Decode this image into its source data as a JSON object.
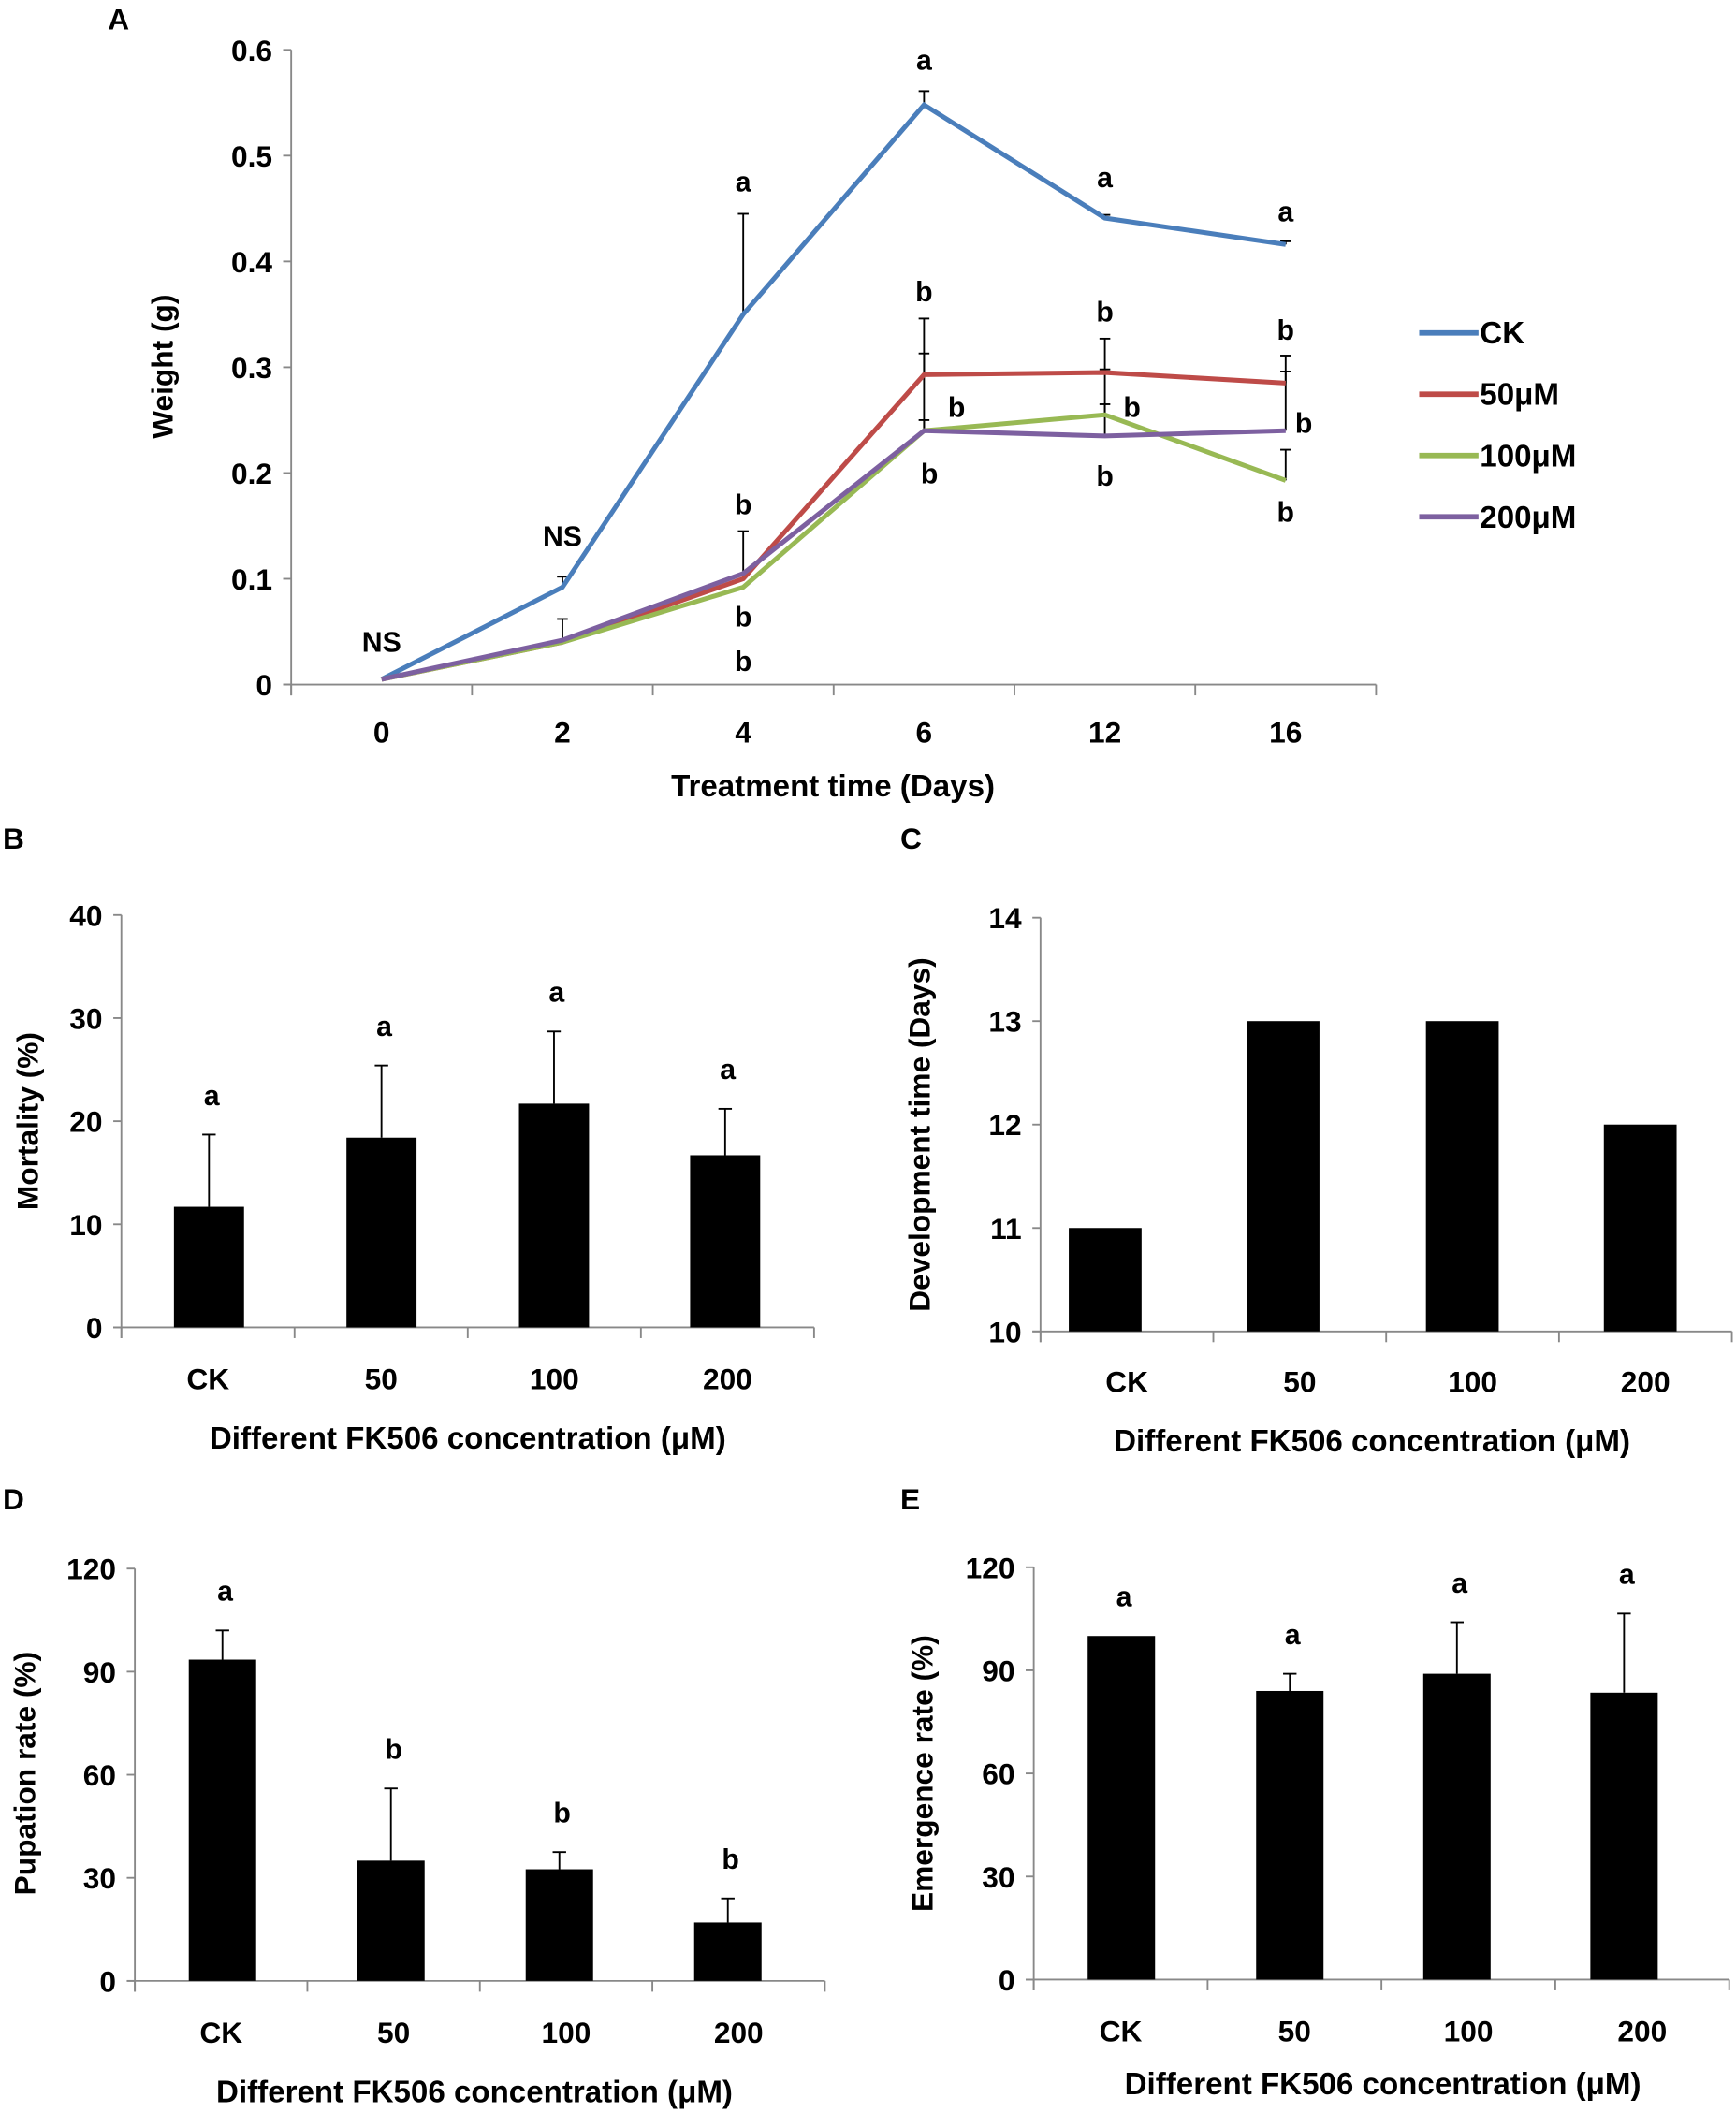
{
  "panel_labels": [
    "A",
    "B",
    "C",
    "D",
    "E"
  ],
  "chart_data": [
    {
      "id": "A",
      "type": "line",
      "xlabel": "Treatment  time (Days)",
      "ylabel": "Weight (g)",
      "categories": [
        "0",
        "2",
        "4",
        "6",
        "12",
        "16"
      ],
      "ylim": [
        0,
        0.6
      ],
      "yticks": [
        "0",
        "0.1",
        "0.2",
        "0.3",
        "0.4",
        "0.5",
        "0.6"
      ],
      "legend_position": "right",
      "series": [
        {
          "name": "CK",
          "color": "#4a7ebb",
          "values": [
            0.005,
            0.092,
            0.35,
            0.548,
            0.441,
            0.416
          ],
          "err_top": [
            null,
            0.102,
            0.445,
            0.561,
            0.444,
            0.419
          ]
        },
        {
          "name": "50μM",
          "color": "#be4b48",
          "values": [
            0.005,
            0.04,
            0.1,
            0.293,
            0.295,
            0.285
          ],
          "err_top": [
            null,
            0.062,
            0.145,
            0.346,
            0.327,
            0.311
          ]
        },
        {
          "name": "100μM",
          "color": "#98b954",
          "values": [
            0.005,
            0.04,
            0.092,
            0.24,
            0.255,
            0.193
          ],
          "err_top": [
            null,
            null,
            null,
            0.25,
            0.265,
            0.222
          ]
        },
        {
          "name": "200μM",
          "color": "#7d60a0",
          "values": [
            0.005,
            0.042,
            0.105,
            0.24,
            0.235,
            0.24
          ],
          "err_top": [
            null,
            null,
            null,
            0.313,
            0.298,
            0.296
          ]
        }
      ],
      "annotations": [
        {
          "x": 0,
          "y": 0.04,
          "text": "NS"
        },
        {
          "x": 1,
          "y": 0.14,
          "text": "NS"
        },
        {
          "x": 2,
          "y": 0.475,
          "text": "a"
        },
        {
          "x": 3,
          "y": 0.59,
          "text": "a"
        },
        {
          "x": 4,
          "y": 0.479,
          "text": "a"
        },
        {
          "x": 5,
          "y": 0.447,
          "text": "a"
        },
        {
          "x": 2,
          "y": 0.17,
          "text": "b"
        },
        {
          "x": 2,
          "y": 0.064,
          "text": "b"
        },
        {
          "x": 2,
          "y": 0.022,
          "text": "b"
        },
        {
          "x": 3,
          "y": 0.371,
          "text": "b"
        },
        {
          "x": 3.18,
          "y": 0.262,
          "text": "b"
        },
        {
          "x": 3.03,
          "y": 0.199,
          "text": "b"
        },
        {
          "x": 4,
          "y": 0.352,
          "text": "b"
        },
        {
          "x": 4.15,
          "y": 0.262,
          "text": "b"
        },
        {
          "x": 4,
          "y": 0.197,
          "text": "b"
        },
        {
          "x": 5,
          "y": 0.335,
          "text": "b"
        },
        {
          "x": 5.1,
          "y": 0.247,
          "text": "b"
        },
        {
          "x": 5,
          "y": 0.163,
          "text": "b"
        }
      ]
    },
    {
      "id": "B",
      "type": "bar",
      "xlabel": "Different FK506 concentration (μM)",
      "ylabel": "Mortality (%)",
      "categories": [
        "CK",
        "50",
        "100",
        "200"
      ],
      "ylim": [
        0,
        40
      ],
      "yticks": [
        "0",
        "10",
        "20",
        "30",
        "40"
      ],
      "values": [
        11.7,
        18.4,
        21.7,
        16.7
      ],
      "err_top": [
        18.7,
        25.4,
        28.7,
        21.2
      ],
      "letters": [
        "a",
        "a",
        "a",
        "a"
      ]
    },
    {
      "id": "C",
      "type": "bar",
      "xlabel": "Different FK506 concentration (μM)",
      "ylabel": "Development time (Days)",
      "categories": [
        "CK",
        "50",
        "100",
        "200"
      ],
      "ylim": [
        10,
        14
      ],
      "yticks": [
        "10",
        "11",
        "12",
        "13",
        "14"
      ],
      "values": [
        11,
        13,
        13,
        12
      ],
      "err_top": [
        null,
        null,
        null,
        null
      ],
      "letters": [
        "",
        "",
        "",
        ""
      ]
    },
    {
      "id": "D",
      "type": "bar",
      "xlabel": "Different FK506 concentration (μM)",
      "ylabel": "Pupation rate (%)",
      "categories": [
        "CK",
        "50",
        "100",
        "200"
      ],
      "ylim": [
        0,
        120
      ],
      "yticks": [
        "0",
        "30",
        "60",
        "90",
        "120"
      ],
      "values": [
        93.5,
        35,
        32.5,
        17
      ],
      "err_top": [
        102,
        56,
        37.5,
        24
      ],
      "letters": [
        "a",
        "b",
        "b",
        "b"
      ]
    },
    {
      "id": "E",
      "type": "bar",
      "xlabel": "Different FK506 concentration (μM)",
      "ylabel": "Emergence rate (%)",
      "categories": [
        "CK",
        "50",
        "100",
        "200"
      ],
      "ylim": [
        0,
        120
      ],
      "yticks": [
        "0",
        "30",
        "60",
        "90",
        "120"
      ],
      "values": [
        100,
        84,
        89,
        83.5
      ],
      "err_top": [
        null,
        89,
        104,
        106.5
      ],
      "letters": [
        "a",
        "a",
        "a",
        "a"
      ]
    }
  ]
}
